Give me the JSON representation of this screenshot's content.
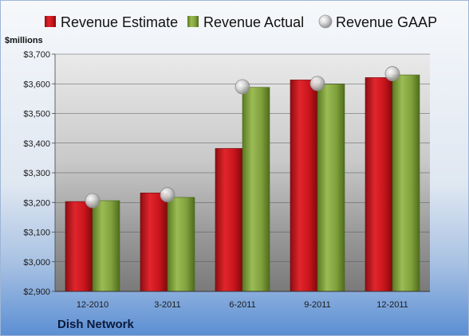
{
  "chart_data": {
    "type": "bar",
    "title": "",
    "company_label": "Dish Network",
    "unit_label": "$millions",
    "categories": [
      "12-2010",
      "3-2011",
      "6-2011",
      "9-2011",
      "12-2011"
    ],
    "series": [
      {
        "name": "Revenue Estimate",
        "type": "bar",
        "values": [
          3203,
          3232,
          3382,
          3613,
          3621
        ]
      },
      {
        "name": "Revenue Actual",
        "type": "bar",
        "values": [
          3206,
          3217,
          3588,
          3599,
          3630
        ]
      },
      {
        "name": "Revenue GAAP",
        "type": "scatter",
        "values": [
          3206,
          3226,
          3590,
          3601,
          3634
        ]
      }
    ],
    "ylim": [
      2900,
      3700
    ],
    "y_ticks": [
      2900,
      3000,
      3100,
      3200,
      3300,
      3400,
      3500,
      3600,
      3700
    ],
    "y_tick_labels": [
      "$2,900",
      "$3,000",
      "$3,100",
      "$3,200",
      "$3,300",
      "$3,400",
      "$3,500",
      "$3,600",
      "$3,700"
    ],
    "grid": true,
    "legend_position": "top",
    "colors": {
      "estimate": "#c8141c",
      "actual": "#7a9a3a",
      "gaap": "#b8b8b8",
      "background_top": "#f4f7fb",
      "background_bottom": "#5d8fd0"
    }
  }
}
